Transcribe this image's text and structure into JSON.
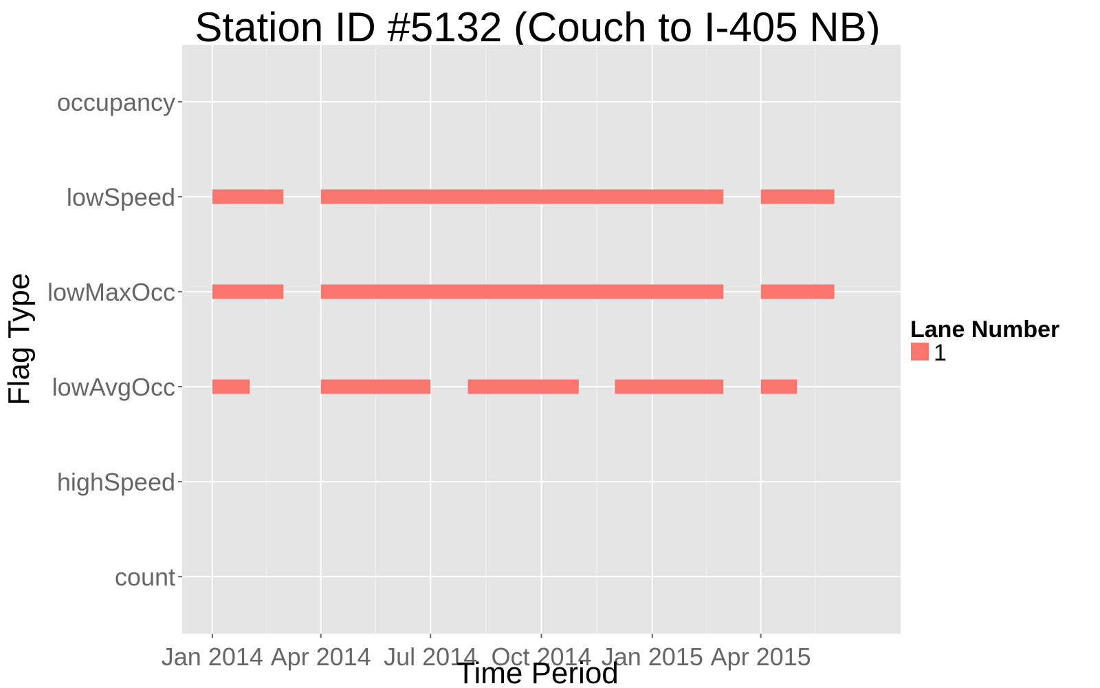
{
  "chart_data": {
    "type": "bar",
    "subtype": "horizontal-segments-on-date-axis",
    "title": "Station ID #5132 (Couch to I-405 NB)",
    "xlabel": "Time Period",
    "ylabel": "Flag Type",
    "categories": [
      "count",
      "highSpeed",
      "lowAvgOcc",
      "lowMaxOcc",
      "lowSpeed",
      "occupancy"
    ],
    "x_ticks": [
      {
        "date": "2014-01-01",
        "label": "Jan 2014"
      },
      {
        "date": "2014-04-01",
        "label": "Apr 2014"
      },
      {
        "date": "2014-07-01",
        "label": "Jul 2014"
      },
      {
        "date": "2014-10-01",
        "label": "Oct 2014"
      },
      {
        "date": "2015-01-01",
        "label": "Jan 2015"
      },
      {
        "date": "2015-04-01",
        "label": "Apr 2015"
      }
    ],
    "xlim": [
      "2013-12-07",
      "2015-07-26"
    ],
    "grid": true,
    "legend": {
      "title": "Lane Number",
      "position": "right"
    },
    "series": [
      {
        "name": "1",
        "color": "#F8766D",
        "segments": [
          {
            "category": "lowSpeed",
            "start": "2014-01-01",
            "end": "2014-03-01"
          },
          {
            "category": "lowSpeed",
            "start": "2014-04-01",
            "end": "2015-03-01"
          },
          {
            "category": "lowSpeed",
            "start": "2015-04-01",
            "end": "2015-06-01"
          },
          {
            "category": "lowMaxOcc",
            "start": "2014-01-01",
            "end": "2014-03-01"
          },
          {
            "category": "lowMaxOcc",
            "start": "2014-04-01",
            "end": "2015-03-01"
          },
          {
            "category": "lowMaxOcc",
            "start": "2015-04-01",
            "end": "2015-06-01"
          },
          {
            "category": "lowAvgOcc",
            "start": "2014-01-01",
            "end": "2014-02-01"
          },
          {
            "category": "lowAvgOcc",
            "start": "2014-04-01",
            "end": "2014-07-01"
          },
          {
            "category": "lowAvgOcc",
            "start": "2014-08-01",
            "end": "2014-11-01"
          },
          {
            "category": "lowAvgOcc",
            "start": "2014-12-01",
            "end": "2015-03-01"
          },
          {
            "category": "lowAvgOcc",
            "start": "2015-04-01",
            "end": "2015-05-01"
          }
        ]
      }
    ]
  }
}
